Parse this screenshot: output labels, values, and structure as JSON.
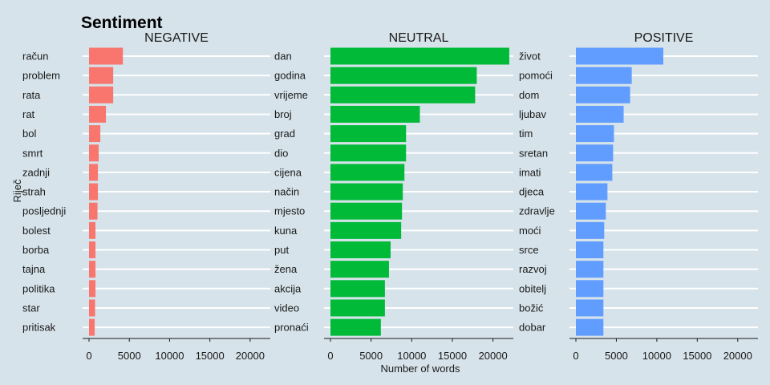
{
  "chart_data": {
    "type": "bar",
    "orientation": "horizontal",
    "title": "Sentiment",
    "xlabel": "Number of words",
    "ylabel": "Riječ",
    "xlim": [
      0,
      22500
    ],
    "xticks": [
      0,
      5000,
      10000,
      15000,
      20000
    ],
    "xtick_labels": [
      "0",
      "5000",
      "10000",
      "15000",
      "20000"
    ],
    "grid": "horizontal",
    "panels": [
      {
        "name": "NEGATIVE",
        "color": "#f8766d",
        "categories": [
          "račun",
          "problem",
          "rata",
          "rat",
          "bol",
          "smrt",
          "zadnji",
          "strah",
          "posljednji",
          "bolest",
          "borba",
          "tajna",
          "politika",
          "star",
          "pritisak"
        ],
        "values": [
          4200,
          3000,
          3000,
          2100,
          1400,
          1200,
          1100,
          1100,
          1050,
          800,
          800,
          800,
          800,
          750,
          700
        ]
      },
      {
        "name": "NEUTRAL",
        "color": "#00ba38",
        "categories": [
          "dan",
          "godina",
          "vrijeme",
          "broj",
          "grad",
          "dio",
          "cijena",
          "način",
          "mjesto",
          "kuna",
          "put",
          "žena",
          "akcija",
          "video",
          "pronaći"
        ],
        "values": [
          22000,
          18000,
          17800,
          11000,
          9300,
          9300,
          9100,
          8900,
          8800,
          8700,
          7400,
          7200,
          6700,
          6700,
          6200
        ]
      },
      {
        "name": "POSITIVE",
        "color": "#619cff",
        "categories": [
          "život",
          "pomoći",
          "dom",
          "ljubav",
          "tim",
          "sretan",
          "imati",
          "djeca",
          "zdravlje",
          "moći",
          "srce",
          "razvoj",
          "obitelj",
          "božić",
          "dobar"
        ],
        "values": [
          10800,
          6900,
          6700,
          5900,
          4700,
          4600,
          4500,
          3900,
          3700,
          3500,
          3400,
          3400,
          3400,
          3400,
          3400
        ]
      }
    ]
  }
}
